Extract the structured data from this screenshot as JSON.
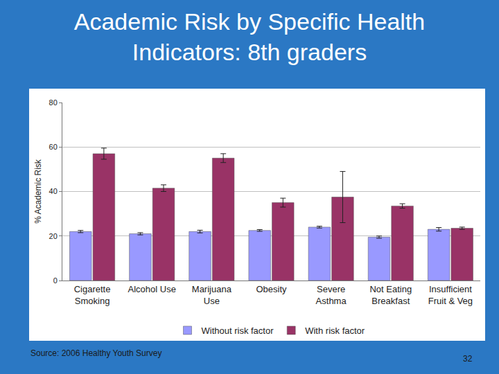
{
  "chart_data": {
    "type": "bar",
    "title": "Academic Risk by Specific Health Indicators: 8th graders",
    "y_label": "% Academic Risk",
    "categories": [
      "Cigarette Smoking",
      "Alcohol Use",
      "Marijuana Use",
      "Obesity",
      "Severe Asthma",
      "Not Eating Breakfast",
      "Insufficient Fruit & Veg"
    ],
    "series": [
      {
        "name": "Without risk factor",
        "color": "#9999ff",
        "values": [
          22,
          21,
          22,
          22.5,
          24,
          19.5,
          23
        ],
        "errors": [
          0.5,
          0.5,
          0.6,
          0.4,
          0.4,
          0.5,
          0.8
        ]
      },
      {
        "name": "With risk factor",
        "color": "#993366",
        "values": [
          57,
          41.5,
          55,
          35,
          37.5,
          33.5,
          23.5
        ],
        "errors": [
          2.5,
          1.5,
          2,
          2,
          11.5,
          1,
          0.5
        ]
      }
    ],
    "ylim": [
      0,
      80
    ],
    "yticks": [
      0,
      20,
      40,
      60,
      80
    ],
    "grid": true,
    "legend": "bottom"
  },
  "footer": {
    "source": "Source: 2006 Healthy Youth Survey",
    "slide_number": 32
  }
}
